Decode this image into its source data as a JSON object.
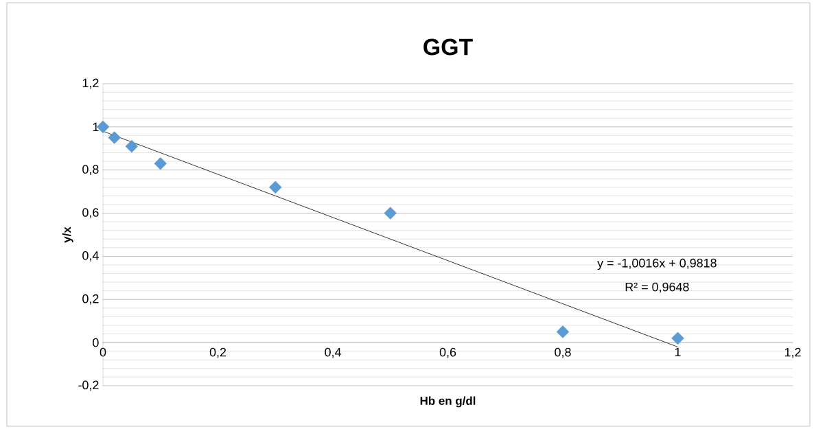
{
  "chart_data": {
    "type": "scatter",
    "title": "GGT",
    "xlabel": "Hb en g/dl",
    "ylabel": "y/x",
    "series": [
      {
        "color": "#5b9bd5",
        "marker": "diamond",
        "x": [
          0,
          0.02,
          0.05,
          0.1,
          0.3,
          0.5,
          0.8,
          1
        ],
        "values": [
          1,
          0.95,
          0.91,
          0.83,
          0.72,
          0.6,
          0.05,
          0.02
        ]
      },
      {
        "type": "line",
        "color": "#000000",
        "marker": "none",
        "x": [
          0,
          1
        ],
        "values": [
          0.98,
          -0.02
        ]
      }
    ],
    "xlim": [
      0,
      1.2
    ],
    "ylim": [
      -0.2,
      1.2
    ],
    "xticks": [
      0,
      {
        "value": 0.2,
        "label": "0,2"
      },
      {
        "value": 0.4,
        "label": "0,4"
      },
      {
        "value": 0.6,
        "label": "0,6"
      },
      {
        "value": 0.8,
        "label": "0,8"
      },
      1,
      {
        "value": 1.2,
        "label": "1,2"
      }
    ],
    "yticks": [
      {
        "value": -0.2,
        "label": "-0,2"
      },
      0,
      {
        "value": 0.2,
        "label": "0,2"
      },
      {
        "value": 0.4,
        "label": "0,4"
      },
      {
        "value": 0.6,
        "label": "0,6"
      },
      {
        "value": 0.8,
        "label": "0,8"
      },
      1,
      {
        "value": 1.2,
        "label": "1,2"
      }
    ],
    "grid": "y",
    "annotations": [
      "y = -1,0016x + 0,9818",
      "R² = 0,9648"
    ]
  }
}
